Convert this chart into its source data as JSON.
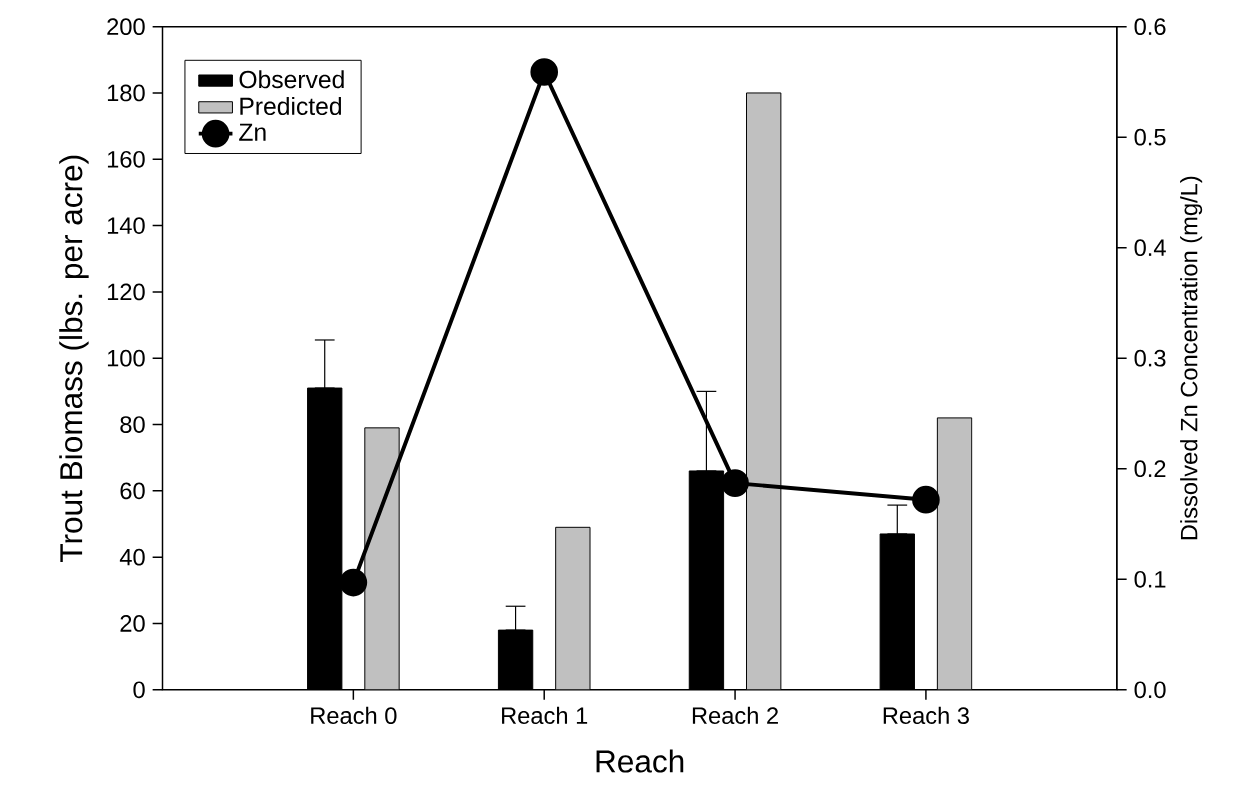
{
  "chart_data": {
    "type": "bar",
    "xlabel": "Reach",
    "ylabel": "Trout Biomass (lbs. per acre)",
    "y2label": "Dissolved Zn Concentration (mg/L)",
    "categories": [
      "Reach 0",
      "Reach 1",
      "Reach 2",
      "Reach 3"
    ],
    "series": [
      {
        "name": "Observed",
        "color": "#000000",
        "values": [
          91,
          18,
          66,
          47
        ],
        "errors": [
          [
            91,
            105.5
          ],
          [
            18,
            25.2
          ],
          [
            66,
            90
          ],
          [
            47,
            55.7
          ]
        ]
      },
      {
        "name": "Predicted",
        "color": "#c0c0c0",
        "values": [
          79,
          49,
          180,
          82
        ]
      },
      {
        "name": "Zn",
        "type": "line",
        "axis": "y2",
        "color": "#000000",
        "values": [
          0.097,
          0.559,
          0.187,
          0.172
        ],
        "marker": "circle",
        "line_style": "solid"
      }
    ],
    "ylim": [
      0,
      200
    ],
    "yticks": [
      0,
      20,
      40,
      60,
      80,
      100,
      120,
      140,
      160,
      180,
      200
    ],
    "y2lim": [
      0,
      0.6
    ],
    "y2ticks": [
      {
        "value": 0,
        "label": "0.0"
      },
      {
        "value": 0.1,
        "label": "0.1"
      },
      {
        "value": 0.2,
        "label": "0.2"
      },
      {
        "value": 0.3,
        "label": "0.3"
      },
      {
        "value": 0.4,
        "label": "0.4"
      },
      {
        "value": 0.5,
        "label": "0.5"
      },
      {
        "value": 0.6,
        "label": "0.6"
      }
    ],
    "legend": "top left",
    "grid": false
  }
}
